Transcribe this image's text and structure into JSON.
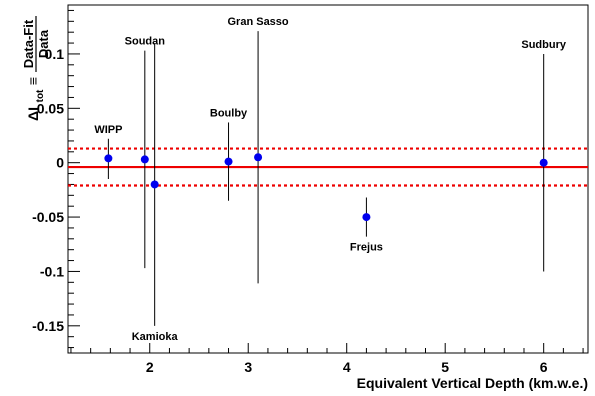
{
  "chart_data": {
    "type": "scatter",
    "xlabel": "Equivalent Vertical Depth (km.w.e.)",
    "ylabel": {
      "delta": "ΔI",
      "sub": "tot",
      "equiv": "≡",
      "numerator": "Data-Fit",
      "denominator": "Data"
    },
    "xlim": [
      1.17,
      6.45
    ],
    "ylim": [
      -0.175,
      0.145
    ],
    "x_ticks": [
      2,
      3,
      4,
      5,
      6
    ],
    "x_tick_labels": [
      "2",
      "3",
      "4",
      "5",
      "6"
    ],
    "y_ticks": [
      -0.15,
      -0.1,
      -0.05,
      0,
      0.05,
      0.1
    ],
    "y_tick_labels": [
      "-0.15",
      "-0.1",
      "-0.05",
      "0",
      "0.05",
      "0.1"
    ],
    "grid": false,
    "points": [
      {
        "label": "WIPP",
        "x": 1.58,
        "y": 0.004,
        "yerr_low": 0.019,
        "yerr_high": 0.018
      },
      {
        "label": "Soudan",
        "x": 1.95,
        "y": 0.003,
        "yerr_low": 0.1,
        "yerr_high": 0.1
      },
      {
        "label": "Kamioka",
        "x": 2.05,
        "y": -0.02,
        "yerr_low": 0.13,
        "yerr_high": 0.13
      },
      {
        "label": "Boulby",
        "x": 2.8,
        "y": 0.001,
        "yerr_low": 0.036,
        "yerr_high": 0.036
      },
      {
        "label": "Gran Sasso",
        "x": 3.1,
        "y": 0.005,
        "yerr_low": 0.116,
        "yerr_high": 0.116
      },
      {
        "label": "Frejus",
        "x": 4.2,
        "y": -0.05,
        "yerr_low": 0.018,
        "yerr_high": 0.018
      },
      {
        "label": "Sudbury",
        "x": 6.0,
        "y": 0.0,
        "yerr_low": 0.1,
        "yerr_high": 0.1
      }
    ],
    "reference_lines": {
      "fit": -0.004,
      "band_upper": 0.013,
      "band_lower": -0.021
    },
    "colors": {
      "points": "#0000ee",
      "fit_line": "#ee0000",
      "band_lines": "#ee0000",
      "error_bars": "#000000"
    }
  }
}
